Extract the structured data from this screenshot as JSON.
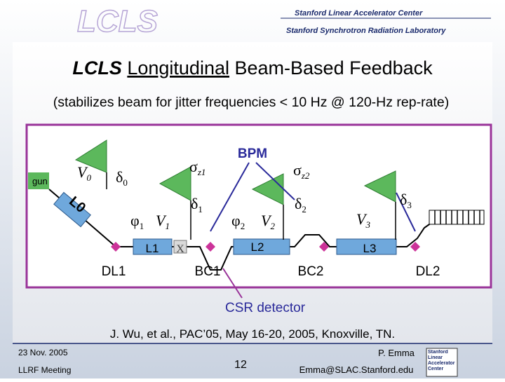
{
  "header": {
    "logo": "LCLS",
    "org1": "Stanford Linear Accelerator Center",
    "org2": "Stanford Synchrotron Radiation Laboratory"
  },
  "title": {
    "part1": "LCLS",
    "part2": "Longitudinal",
    "part3": "Beam-Based Feedback"
  },
  "subtitle": "(stabilizes beam for jitter frequencies < 10 Hz @ 120-Hz rep-rate)",
  "diagram": {
    "gun": "gun",
    "bpm": "BPM",
    "csr": "CSR detector",
    "v0": {
      "symbol": "V",
      "sub": "0"
    },
    "d0": {
      "symbol": "δ",
      "sub": "0"
    },
    "sz1": {
      "symbol": "σ",
      "sub": "z1"
    },
    "d1": {
      "symbol": "δ",
      "sub": "1"
    },
    "p1": {
      "symbol": "φ",
      "sub": "1"
    },
    "v1": {
      "symbol": "V",
      "sub": "1"
    },
    "sz2": {
      "symbol": "σ",
      "sub": "z2"
    },
    "p2": {
      "symbol": "φ",
      "sub": "2"
    },
    "v2": {
      "symbol": "V",
      "sub": "2"
    },
    "d2": {
      "symbol": "δ",
      "sub": "2"
    },
    "v3": {
      "symbol": "V",
      "sub": "3"
    },
    "d3": {
      "symbol": "δ",
      "sub": "3"
    },
    "l0": "L0",
    "l1": "L1",
    "x": "X",
    "l2": "L2",
    "l3": "L3",
    "dl1": "DL1",
    "bc1": "BC1",
    "bc2": "BC2",
    "dl2": "DL2"
  },
  "reference": "J. Wu, et al., PAC’05, May 16-20, 2005, Knoxville, TN.",
  "footer": {
    "date": "23 Nov. 2005",
    "meeting": "LLRF Meeting",
    "page": "12",
    "author": "P. Emma",
    "email": "Emma@SLAC.Stanford.edu",
    "logo": "Stanford Linear Accelerator Center"
  }
}
